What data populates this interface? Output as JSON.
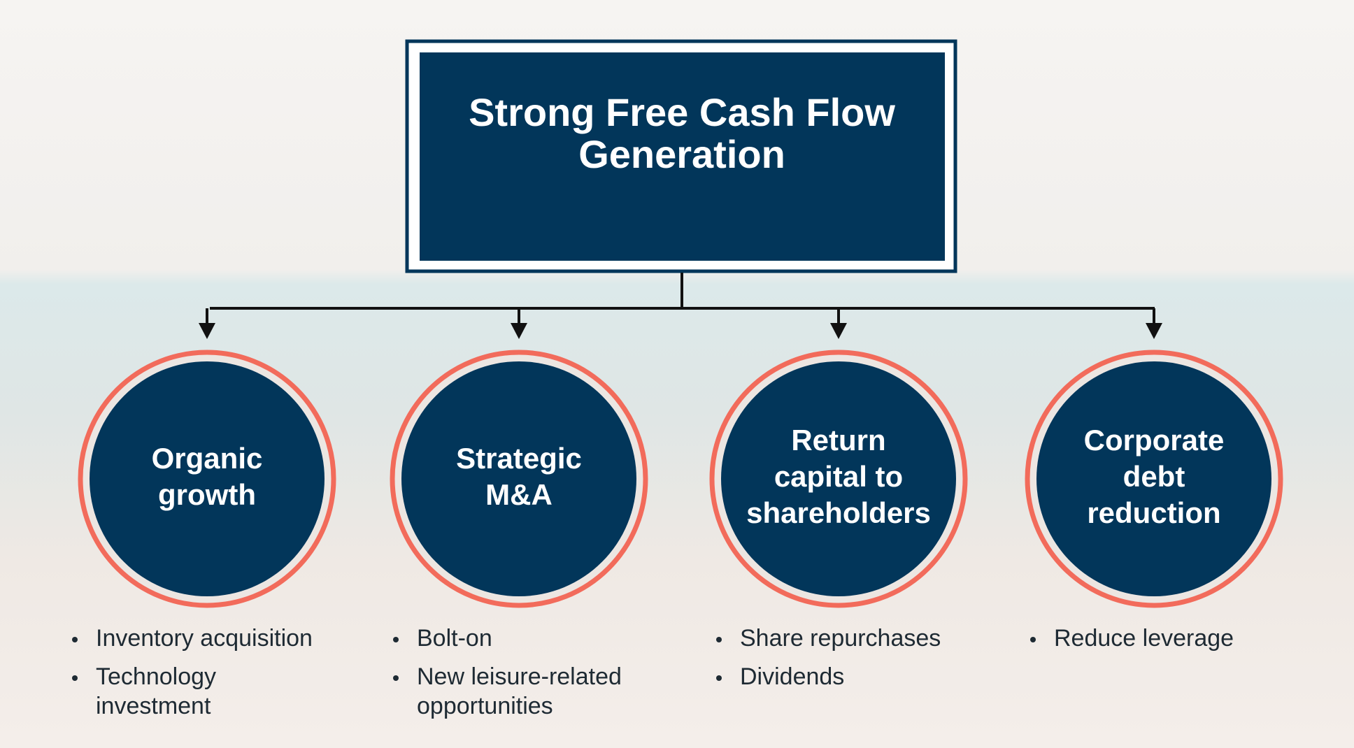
{
  "title": [
    "Strong Free Cash Flow",
    "Generation"
  ],
  "nodes": [
    {
      "label": [
        "Organic",
        "growth"
      ],
      "bullets": [
        [
          "Inventory acquisition"
        ],
        [
          "Technology",
          "investment"
        ]
      ]
    },
    {
      "label": [
        "Strategic",
        "M&A"
      ],
      "bullets": [
        [
          "Bolt-on"
        ],
        [
          "New leisure-related",
          "opportunities"
        ]
      ]
    },
    {
      "label": [
        "Return",
        "capital to",
        "shareholders"
      ],
      "bullets": [
        [
          "Share repurchases"
        ],
        [
          "Dividends"
        ]
      ]
    },
    {
      "label": [
        "Corporate",
        "debt",
        "reduction"
      ],
      "bullets": [
        [
          "Reduce leverage"
        ]
      ]
    }
  ]
}
